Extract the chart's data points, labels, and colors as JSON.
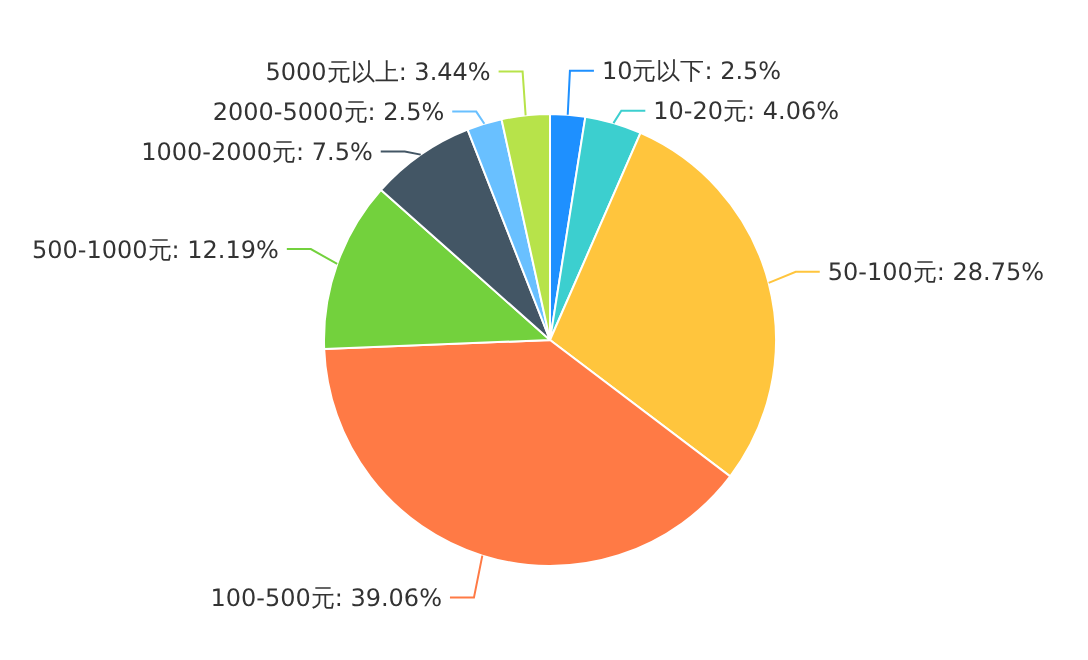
{
  "chart_data": {
    "type": "pie",
    "categories": [
      "10元以下",
      "10-20元",
      "50-100元",
      "100-500元",
      "500-1000元",
      "1000-2000元",
      "2000-5000元",
      "5000元以上"
    ],
    "values": [
      2.5,
      4.06,
      28.75,
      39.06,
      12.19,
      7.5,
      2.5,
      3.44
    ],
    "value_labels": [
      "2.5%",
      "4.06%",
      "28.75%",
      "39.06%",
      "12.19%",
      "7.5%",
      "2.5%",
      "3.44%"
    ],
    "colors": [
      "#1e90ff",
      "#3ccfcf",
      "#ffc53d",
      "#ff7a45",
      "#73d13d",
      "#435665",
      "#69c0ff",
      "#b7e34a"
    ]
  }
}
